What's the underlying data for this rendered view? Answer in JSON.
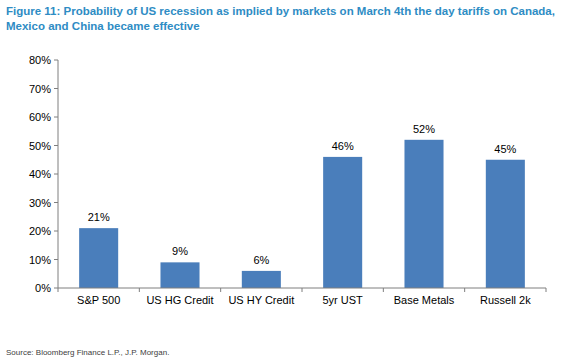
{
  "chart_data": {
    "type": "bar",
    "title": "Figure 11: Probability of US recession as implied by markets on March 4th the day tariffs on Canada, Mexico and China became effective",
    "categories": [
      "S&P 500",
      "US HG Credit",
      "US HY Credit",
      "5yr UST",
      "Base Metals",
      "Russell 2k"
    ],
    "values": [
      21,
      9,
      6,
      46,
      52,
      45
    ],
    "value_labels": [
      "21%",
      "9%",
      "6%",
      "46%",
      "52%",
      "45%"
    ],
    "color": "#4a7ebb",
    "ylim": [
      0,
      80
    ],
    "yticks": [
      {
        "value": 0,
        "label": "0%"
      },
      {
        "value": 10,
        "label": "10%"
      },
      {
        "value": 20,
        "label": "20%"
      },
      {
        "value": 30,
        "label": "30%"
      },
      {
        "value": 40,
        "label": "40%"
      },
      {
        "value": 50,
        "label": "50%"
      },
      {
        "value": 60,
        "label": "60%"
      },
      {
        "value": 70,
        "label": "70%"
      },
      {
        "value": 80,
        "label": "80%"
      }
    ],
    "grid": false,
    "data_labels": true,
    "source": "Source: Bloomberg Finance L.P., J.P. Morgan."
  }
}
